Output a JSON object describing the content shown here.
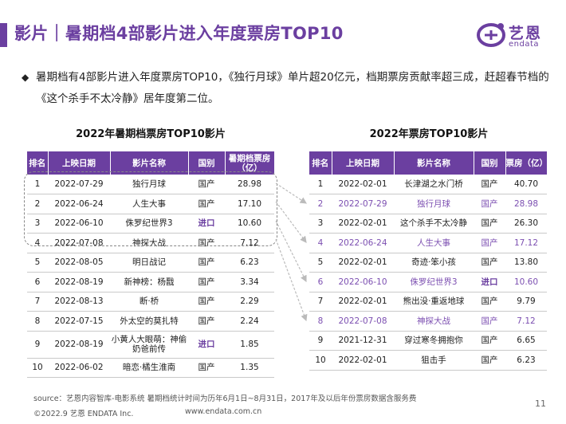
{
  "header": {
    "title": "影片｜暑期档4部影片进入年度票房TOP10",
    "logo_cn": "艺恩",
    "logo_en": "endata"
  },
  "bullet": {
    "text": "暑期档有4部影片进入年度票房TOP10，《独行月球》单片超20亿元，档期票房贡献率超三成，赶超春节档的《这个杀手不太冷静》居年度第二位。"
  },
  "left_table": {
    "title": "2022年暑期档票房TOP10影片",
    "headers": [
      "排名",
      "上映日期",
      "影片名称",
      "国别",
      "暑期档票房（亿）"
    ],
    "rows": [
      [
        "1",
        "2022-07-29",
        "独行月球",
        "国产",
        "28.98"
      ],
      [
        "2",
        "2022-06-24",
        "人生大事",
        "国产",
        "17.10"
      ],
      [
        "3",
        "2022-06-10",
        "侏罗纪世界3",
        "进口",
        "10.60"
      ],
      [
        "4",
        "2022-07-08",
        "神探大战",
        "国产",
        "7.12"
      ],
      [
        "5",
        "2022-08-05",
        "明日战记",
        "国产",
        "6.23"
      ],
      [
        "6",
        "2022-08-19",
        "新神榜：杨戬",
        "国产",
        "3.34"
      ],
      [
        "7",
        "2022-08-13",
        "断·桥",
        "国产",
        "2.29"
      ],
      [
        "8",
        "2022-07-15",
        "外太空的莫扎特",
        "国产",
        "2.24"
      ],
      [
        "9",
        "2022-08-19",
        "小黄人大眼萌：神偷奶爸前传",
        "进口",
        "1.85"
      ],
      [
        "10",
        "2022-06-02",
        "暗恋·橘生淮南",
        "国产",
        "1.35"
      ]
    ]
  },
  "right_table": {
    "title": "2022年票房TOP10影片",
    "headers": [
      "排名",
      "上映日期",
      "影片名称",
      "国别",
      "票房（亿）"
    ],
    "rows": [
      [
        "1",
        "2022-02-01",
        "长津湖之水门桥",
        "国产",
        "40.70"
      ],
      [
        "2",
        "2022-07-29",
        "独行月球",
        "国产",
        "28.98"
      ],
      [
        "3",
        "2022-02-01",
        "这个杀手不太冷静",
        "国产",
        "26.30"
      ],
      [
        "4",
        "2022-06-24",
        "人生大事",
        "国产",
        "17.12"
      ],
      [
        "5",
        "2022-02-01",
        "奇迹·笨小孩",
        "国产",
        "13.80"
      ],
      [
        "6",
        "2022-06-10",
        "侏罗纪世界3",
        "进口",
        "10.60"
      ],
      [
        "7",
        "2022-02-01",
        "熊出没·重返地球",
        "国产",
        "9.79"
      ],
      [
        "8",
        "2022-07-08",
        "神探大战",
        "国产",
        "7.12"
      ],
      [
        "9",
        "2021-12-31",
        "穿过寒冬拥抱你",
        "国产",
        "6.65"
      ],
      [
        "10",
        "2022-02-01",
        "狙击手",
        "国产",
        "6.23"
      ]
    ],
    "highlight_rows": [
      2,
      4,
      6,
      8
    ]
  },
  "footer": {
    "source": "source：艺恩内容智库-电影系统    暑期档统计时间为历年6月1日~8月31日，2017年及以后年份票房数据含服务费",
    "copyright": "©2022.9 艺恩 ENDATA Inc.",
    "url": "www.endata.com.cn",
    "page": "11"
  },
  "colors": {
    "accent": "#6b3fa0",
    "highlight_text": "#7c4fb1"
  }
}
